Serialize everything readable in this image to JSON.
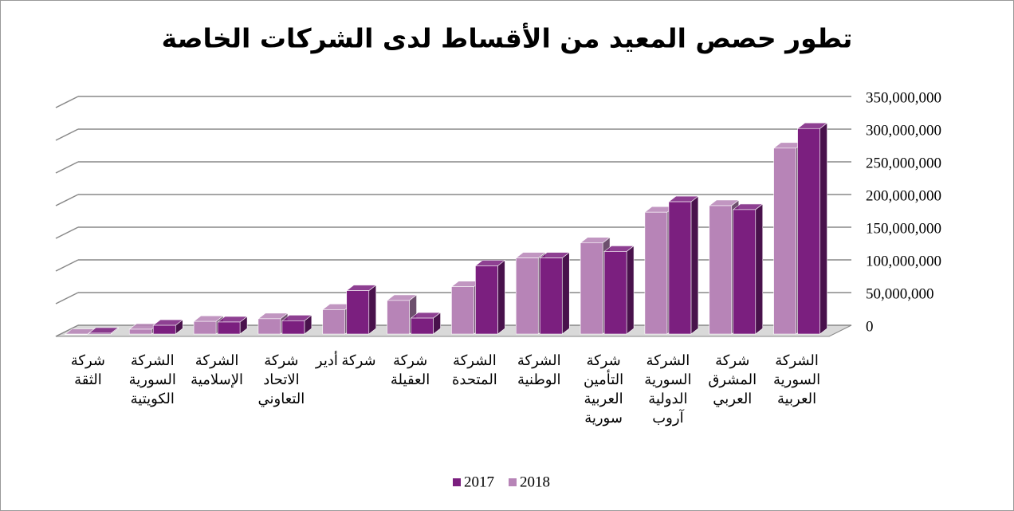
{
  "chart_data": {
    "type": "bar3d",
    "title": "تطور حصص المعيد من الأقساط لدى الشركات الخاصة",
    "categories": [
      "شركة الثقة",
      "الشركة السورية الكويتية",
      "الشركة الإسلامية",
      "شركة الاتحاد التعاوني",
      "شركة أدير",
      "شركة العقيلة",
      "الشركة المتحدة",
      "الشركة الوطنية",
      "شركة التأمين العربية سورية",
      "الشركة السورية الدولية آروب",
      "شركة المشرق العربي",
      "الشركة السورية العربية"
    ],
    "series": [
      {
        "name": "2017",
        "color": "#7b1f7f",
        "values": [
          5000000,
          17000000,
          22000000,
          24000000,
          70000000,
          28000000,
          108000000,
          120000000,
          130000000,
          206000000,
          194000000,
          318000000
        ]
      },
      {
        "name": "2018",
        "color": "#b784b7",
        "values": [
          3000000,
          11000000,
          23000000,
          27000000,
          41000000,
          55000000,
          76000000,
          120000000,
          143000000,
          190000000,
          200000000,
          288000000
        ]
      }
    ],
    "ylim": [
      0,
      350000000
    ],
    "yticks": [
      0,
      {
        "value": 50000000,
        "label": "50,000,000"
      },
      {
        "value": 100000000,
        "label": "100,000,000"
      },
      {
        "value": 150000000,
        "label": "150,000,000"
      },
      {
        "value": 200000000,
        "label": "200,000,000"
      },
      {
        "value": 250000000,
        "label": "250,000,000"
      },
      {
        "value": 300000000,
        "label": "300,000,000"
      },
      {
        "value": 350000000,
        "label": "350,000,000"
      }
    ],
    "grid": true
  }
}
